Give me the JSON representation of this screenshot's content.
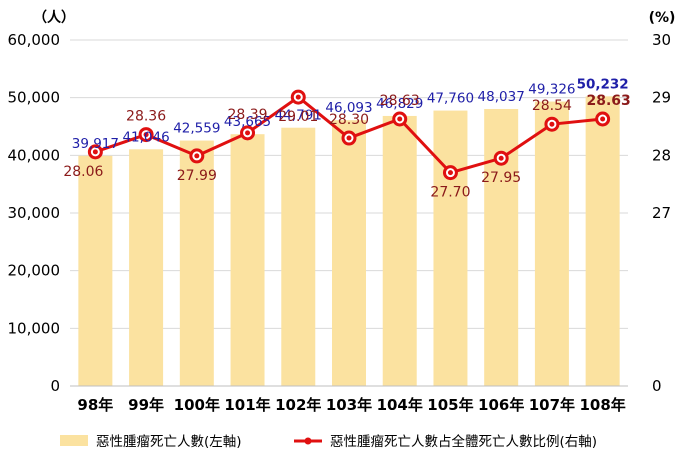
{
  "chart_data": {
    "type": "bar",
    "title": "",
    "categories": [
      "98年",
      "99年",
      "100年",
      "101年",
      "102年",
      "103年",
      "104年",
      "105年",
      "106年",
      "107年",
      "108年"
    ],
    "series": [
      {
        "name": "惡性腫瘤死亡人數(左軸)",
        "type": "bar",
        "axis": "left",
        "color": "#fbe2a0",
        "values": [
          39917,
          41046,
          42559,
          43665,
          44791,
          46093,
          46829,
          47760,
          48037,
          49326,
          50232
        ],
        "labels": [
          "39,917",
          "41,046",
          "42,559",
          "43,665",
          "44,791",
          "46,093",
          "46,829",
          "47,760",
          "48,037",
          "49,326",
          "50,232"
        ]
      },
      {
        "name": "惡性腫瘤死亡人數占全體死亡人數比例(右軸)",
        "type": "line",
        "axis": "right",
        "color": "#e01010",
        "values": [
          28.06,
          28.36,
          27.99,
          28.39,
          29.01,
          28.3,
          28.63,
          27.7,
          27.95,
          28.54,
          28.63
        ],
        "labels": [
          "28.06",
          "28.36",
          "27.99",
          "28.39",
          "29.01",
          "28.30",
          "28.63",
          "27.70",
          "27.95",
          "28.54",
          "28.63"
        ]
      }
    ],
    "y_left": {
      "unit": "（人）",
      "ylim": [
        0,
        60000
      ],
      "ticks": [
        0,
        10000,
        20000,
        30000,
        40000,
        50000,
        60000
      ],
      "tick_labels": [
        "0",
        "10,000",
        "20,000",
        "30,000",
        "40,000",
        "50,000",
        "60,000"
      ]
    },
    "y_right": {
      "unit": "(%)",
      "scale": "broken",
      "ticks": [
        0,
        27,
        28,
        29,
        30
      ],
      "tick_labels": [
        "0",
        "27",
        "28",
        "29",
        "30"
      ]
    },
    "grid": true,
    "legend": "bottom",
    "highlight_last_label": true
  }
}
